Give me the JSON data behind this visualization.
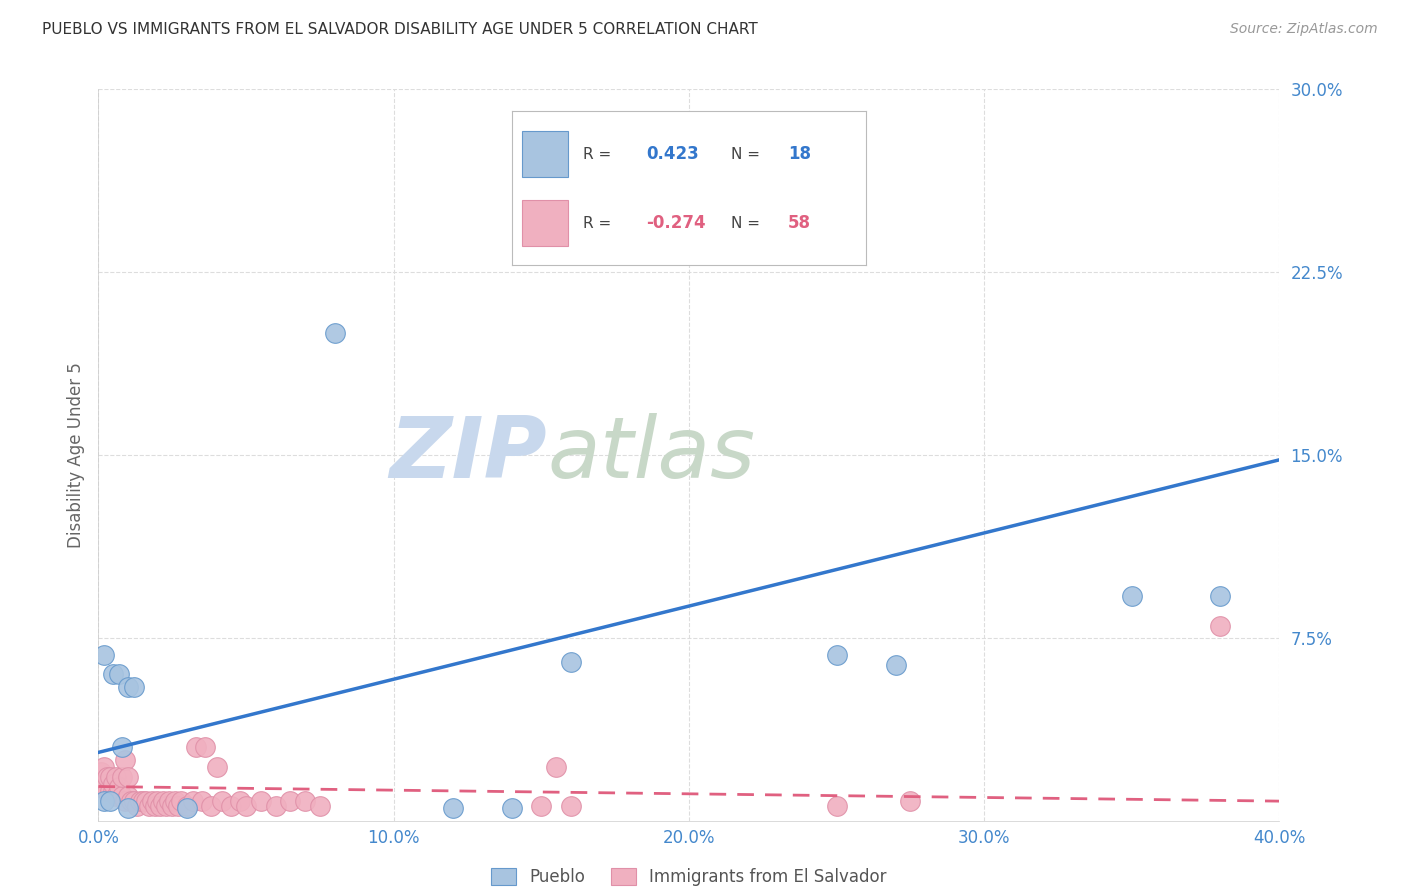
{
  "title": "PUEBLO VS IMMIGRANTS FROM EL SALVADOR DISABILITY AGE UNDER 5 CORRELATION CHART",
  "source": "Source: ZipAtlas.com",
  "ylabel": "Disability Age Under 5",
  "xlim": [
    0.0,
    0.4
  ],
  "ylim": [
    0.0,
    0.3
  ],
  "xticks": [
    0.0,
    0.1,
    0.2,
    0.3,
    0.4
  ],
  "yticks": [
    0.075,
    0.15,
    0.225,
    0.3
  ],
  "xticklabels": [
    "0.0%",
    "10.0%",
    "20.0%",
    "30.0%",
    "40.0%"
  ],
  "yticklabels": [
    "7.5%",
    "15.0%",
    "22.5%",
    "30.0%"
  ],
  "background_color": "#ffffff",
  "grid_color": "#dddddd",
  "watermark_zip": "ZIP",
  "watermark_atlas": "atlas",
  "watermark_color_zip": "#c8d8ed",
  "watermark_color_atlas": "#c8d8c8",
  "pueblo_color": "#a8c4e0",
  "pueblo_line_color": "#3377cc",
  "immigrant_color": "#f0b0c0",
  "immigrant_line_color": "#e06080",
  "pueblo_R": "0.423",
  "pueblo_N": "18",
  "immigrant_R": "-0.274",
  "immigrant_N": "58",
  "pueblo_points": [
    [
      0.002,
      0.068
    ],
    [
      0.005,
      0.06
    ],
    [
      0.007,
      0.06
    ],
    [
      0.01,
      0.055
    ],
    [
      0.012,
      0.055
    ],
    [
      0.002,
      0.008
    ],
    [
      0.004,
      0.008
    ],
    [
      0.008,
      0.03
    ],
    [
      0.08,
      0.2
    ],
    [
      0.16,
      0.065
    ],
    [
      0.25,
      0.068
    ],
    [
      0.27,
      0.064
    ],
    [
      0.35,
      0.092
    ],
    [
      0.38,
      0.092
    ],
    [
      0.01,
      0.005
    ],
    [
      0.03,
      0.005
    ],
    [
      0.12,
      0.005
    ],
    [
      0.14,
      0.005
    ]
  ],
  "immigrant_points": [
    [
      0.001,
      0.02
    ],
    [
      0.002,
      0.015
    ],
    [
      0.002,
      0.022
    ],
    [
      0.003,
      0.012
    ],
    [
      0.003,
      0.018
    ],
    [
      0.004,
      0.012
    ],
    [
      0.004,
      0.018
    ],
    [
      0.005,
      0.012
    ],
    [
      0.005,
      0.015
    ],
    [
      0.006,
      0.01
    ],
    [
      0.006,
      0.018
    ],
    [
      0.007,
      0.014
    ],
    [
      0.008,
      0.01
    ],
    [
      0.008,
      0.018
    ],
    [
      0.009,
      0.008
    ],
    [
      0.009,
      0.025
    ],
    [
      0.01,
      0.01
    ],
    [
      0.01,
      0.018
    ],
    [
      0.011,
      0.008
    ],
    [
      0.012,
      0.008
    ],
    [
      0.013,
      0.006
    ],
    [
      0.014,
      0.008
    ],
    [
      0.015,
      0.008
    ],
    [
      0.016,
      0.008
    ],
    [
      0.017,
      0.006
    ],
    [
      0.018,
      0.008
    ],
    [
      0.019,
      0.006
    ],
    [
      0.02,
      0.008
    ],
    [
      0.021,
      0.006
    ],
    [
      0.022,
      0.008
    ],
    [
      0.023,
      0.006
    ],
    [
      0.024,
      0.008
    ],
    [
      0.025,
      0.006
    ],
    [
      0.026,
      0.008
    ],
    [
      0.027,
      0.006
    ],
    [
      0.028,
      0.008
    ],
    [
      0.03,
      0.006
    ],
    [
      0.032,
      0.008
    ],
    [
      0.033,
      0.03
    ],
    [
      0.035,
      0.008
    ],
    [
      0.036,
      0.03
    ],
    [
      0.038,
      0.006
    ],
    [
      0.04,
      0.022
    ],
    [
      0.042,
      0.008
    ],
    [
      0.045,
      0.006
    ],
    [
      0.048,
      0.008
    ],
    [
      0.05,
      0.006
    ],
    [
      0.055,
      0.008
    ],
    [
      0.06,
      0.006
    ],
    [
      0.065,
      0.008
    ],
    [
      0.07,
      0.008
    ],
    [
      0.075,
      0.006
    ],
    [
      0.15,
      0.006
    ],
    [
      0.155,
      0.022
    ],
    [
      0.16,
      0.006
    ],
    [
      0.25,
      0.006
    ],
    [
      0.275,
      0.008
    ],
    [
      0.38,
      0.08
    ]
  ],
  "pueblo_line_x": [
    0.0,
    0.4
  ],
  "pueblo_line_y0": 0.028,
  "pueblo_line_y1": 0.148,
  "immigrant_line_x": [
    0.0,
    0.4
  ],
  "immigrant_line_y0": 0.014,
  "immigrant_line_y1": 0.008
}
